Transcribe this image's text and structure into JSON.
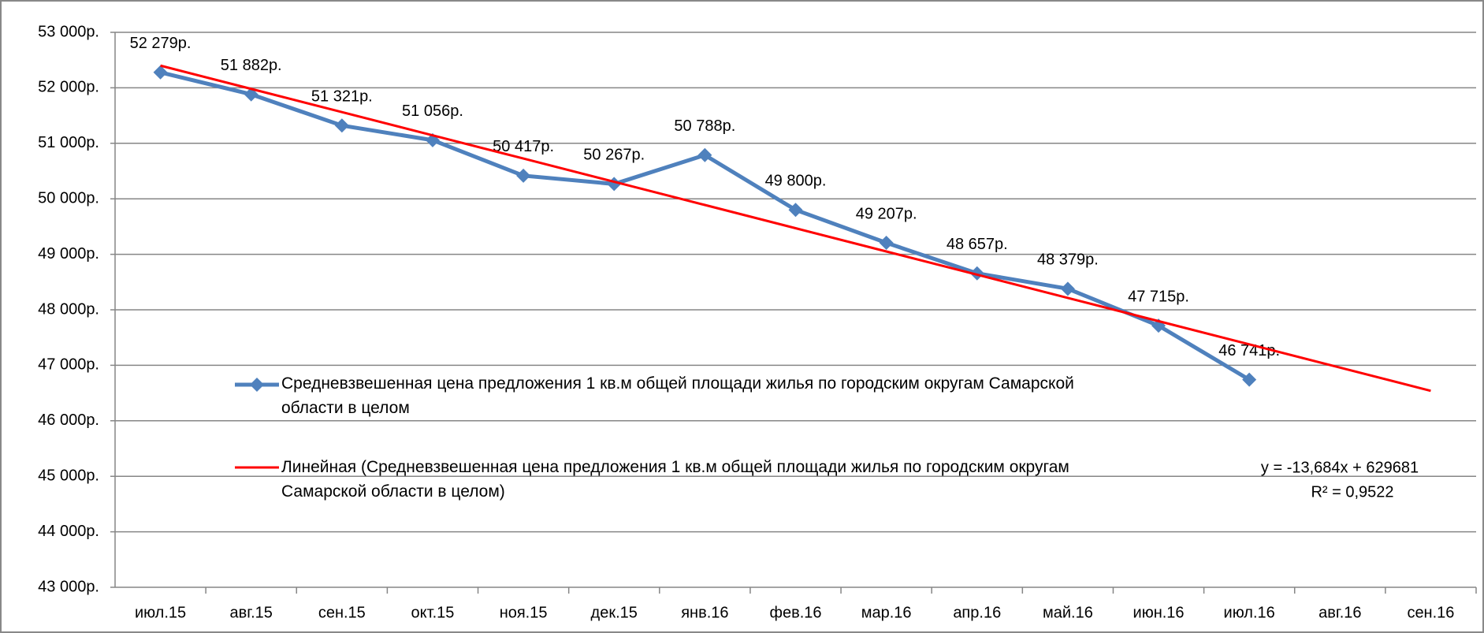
{
  "chart_data": {
    "type": "line",
    "categories": [
      "июл.15",
      "авг.15",
      "сен.15",
      "окт.15",
      "ноя.15",
      "дек.15",
      "янв.16",
      "фев.16",
      "мар.16",
      "апр.16",
      "май.16",
      "июн.16",
      "июл.16",
      "авг.16",
      "сен.16"
    ],
    "series": [
      {
        "name": "Средневзвешенная цена предложения 1 кв.м общей площади жилья по городским округам Самарской области в целом",
        "color": "#4f81bd",
        "marker": "diamond",
        "values": [
          52279,
          51882,
          51321,
          51056,
          50417,
          50267,
          50788,
          49800,
          49207,
          48657,
          48379,
          47715,
          46741,
          null,
          null
        ],
        "value_labels": [
          "52 279р.",
          "51 882р.",
          "51 321р.",
          "51 056р.",
          "50 417р.",
          "50 267р.",
          "50 788р.",
          "49 800р.",
          "49 207р.",
          "48 657р.",
          "48 379р.",
          "47 715р.",
          "46 741р.",
          null,
          null
        ]
      },
      {
        "name": "Линейная (Средневзвешенная цена предложения 1 кв.м общей площади жилья по городским округам Самарской области в целом)",
        "color": "#ff0000",
        "values": [
          52400,
          51981,
          51563,
          51144,
          50726,
          50307,
          49889,
          49470,
          49051,
          48633,
          48214,
          47796,
          47377,
          46959,
          46540
        ]
      }
    ],
    "annotations": [
      "y = -13,684x + 629681",
      "R² = 0,9522"
    ],
    "ylim": [
      43000,
      53000
    ],
    "yticks": [
      {
        "value": 43000,
        "label": "43 000р."
      },
      {
        "value": 44000,
        "label": "44 000р."
      },
      {
        "value": 45000,
        "label": "45 000р."
      },
      {
        "value": 46000,
        "label": "46 000р."
      },
      {
        "value": 47000,
        "label": "47 000р."
      },
      {
        "value": 48000,
        "label": "48 000р."
      },
      {
        "value": 49000,
        "label": "49 000р."
      },
      {
        "value": 50000,
        "label": "50 000р."
      },
      {
        "value": 51000,
        "label": "51 000р."
      },
      {
        "value": 52000,
        "label": "52 000р."
      },
      {
        "value": 53000,
        "label": "53 000р."
      }
    ],
    "grid": true
  }
}
